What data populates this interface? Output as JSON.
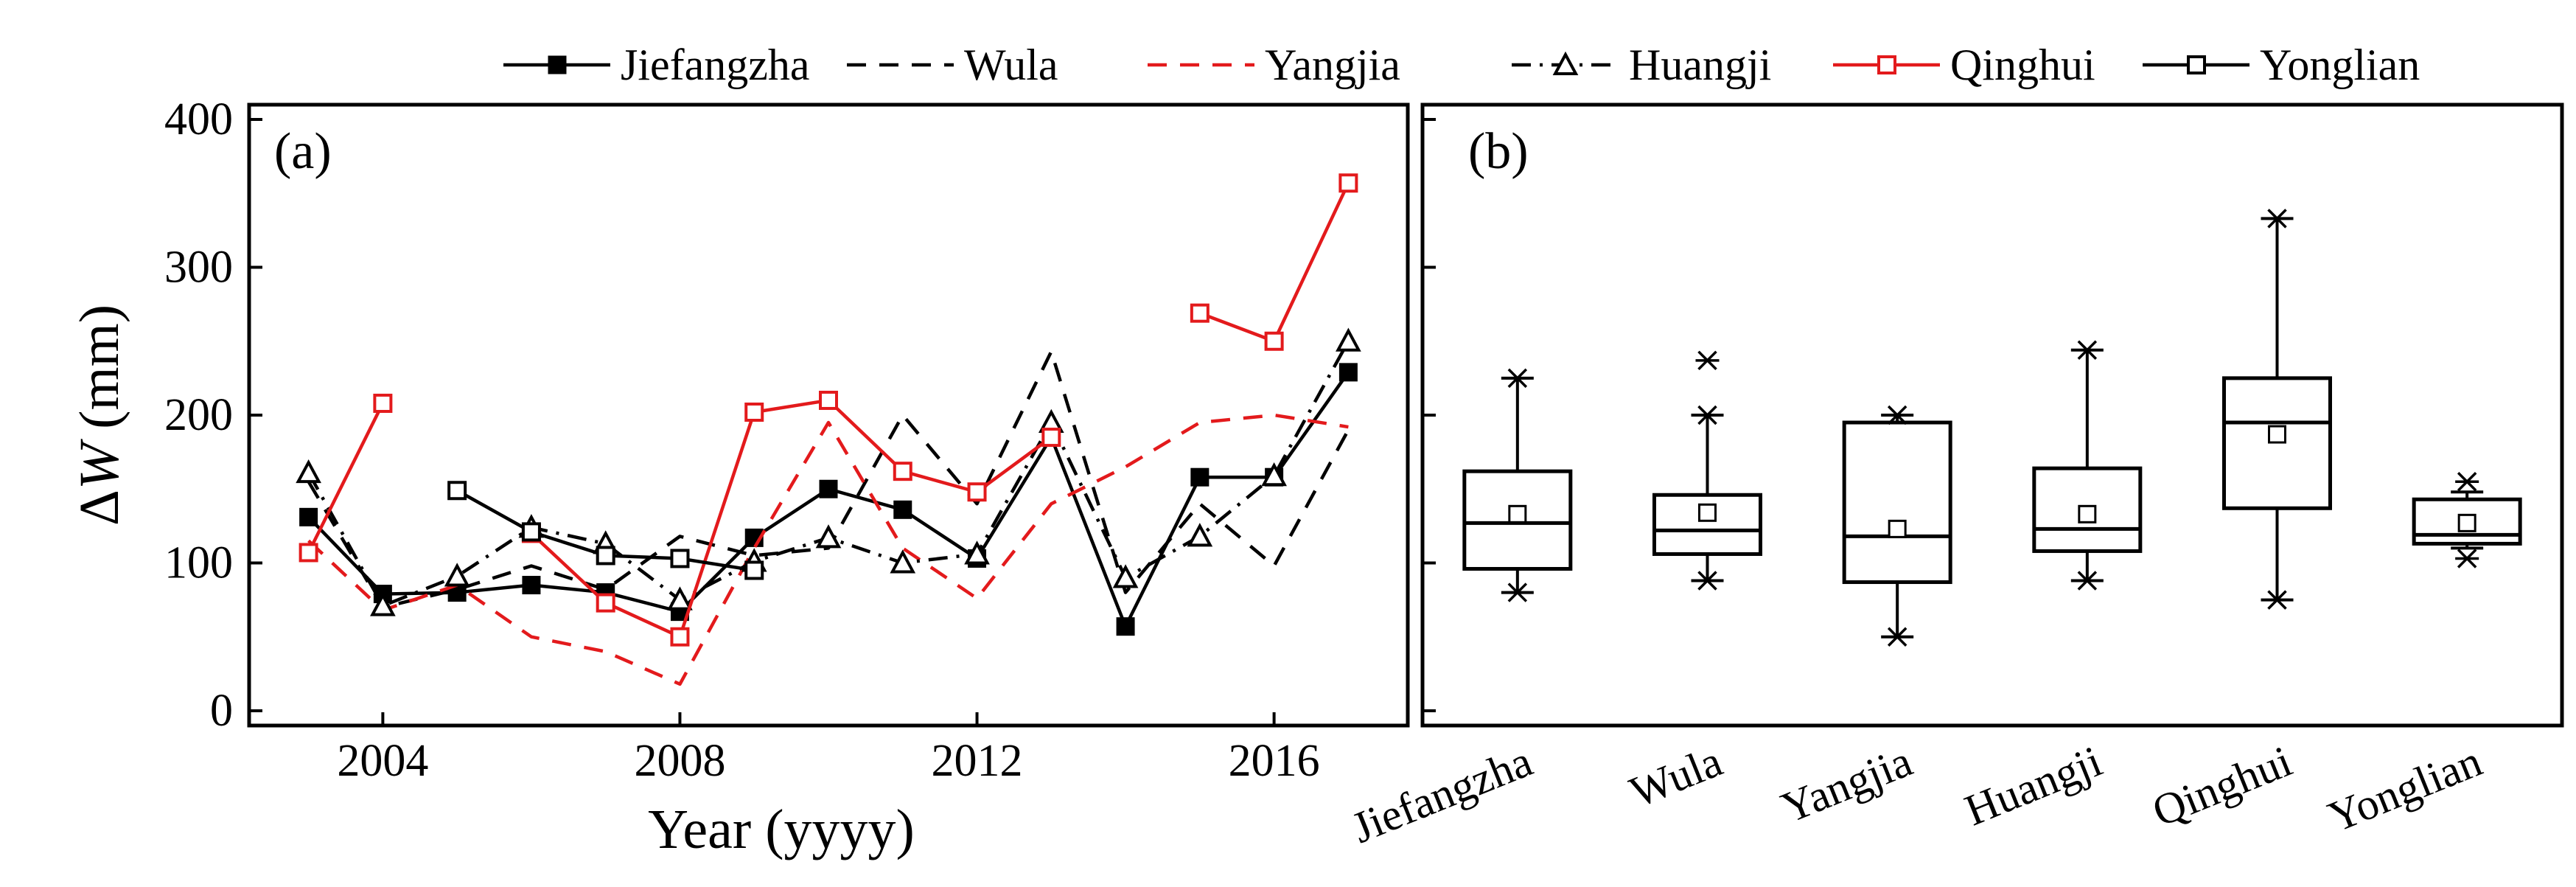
{
  "colors": {
    "black": "#000000",
    "red": "#e31a1c",
    "mean_fill": "#ffffff"
  },
  "legend": [
    {
      "name": "Jiefangzha",
      "color": "#000000",
      "dash": "solid",
      "marker": "filled-square"
    },
    {
      "name": "Wula",
      "color": "#000000",
      "dash": "dashed",
      "marker": "none"
    },
    {
      "name": "Yangjia",
      "color": "#e31a1c",
      "dash": "dashed",
      "marker": "none"
    },
    {
      "name": "Huangji",
      "color": "#000000",
      "dash": "dashdot",
      "marker": "open-triangle"
    },
    {
      "name": "Qinghui",
      "color": "#e31a1c",
      "dash": "solid",
      "marker": "open-square"
    },
    {
      "name": "Yonglian",
      "color": "#000000",
      "dash": "solid",
      "marker": "open-square"
    }
  ],
  "chart_data": [
    {
      "type": "line",
      "panel_label": "(a)",
      "xlabel": "Year (yyyy)",
      "ylabel_prefix": "Δ",
      "ylabel_var": "W",
      "ylabel_suffix": " (mm)",
      "xlim": [
        2002.2,
        2017.8
      ],
      "ylim": [
        -10,
        410
      ],
      "xticks": [
        2004,
        2008,
        2012,
        2016
      ],
      "xtick_labels": [
        "2004",
        "2008",
        "2012",
        "2016"
      ],
      "yticks": [
        0,
        100,
        200,
        300,
        400
      ],
      "ytick_labels": [
        "0",
        "100",
        "200",
        "300",
        "400"
      ],
      "series": [
        {
          "name": "Jiefangzha",
          "x": [
            2003,
            2004,
            2005,
            2006,
            2007,
            2008,
            2009,
            2010,
            2011,
            2012,
            2013,
            2014,
            2015,
            2016,
            2017
          ],
          "values": [
            131,
            79,
            80,
            85,
            80,
            67,
            117,
            150,
            136,
            103,
            185,
            57,
            158,
            158,
            229
          ]
        },
        {
          "name": "Wula",
          "x": [
            2003,
            2004,
            2005,
            2006,
            2007,
            2008,
            2009,
            2010,
            2011,
            2012,
            2013,
            2014,
            2015,
            2016,
            2017
          ],
          "values": [
            155,
            70,
            82,
            98,
            82,
            118,
            105,
            110,
            200,
            140,
            243,
            80,
            140,
            98,
            190
          ]
        },
        {
          "name": "Yangjia",
          "x": [
            2003,
            2004,
            2005,
            2006,
            2007,
            2008,
            2009,
            2010,
            2011,
            2012,
            2013,
            2014,
            2015,
            2016,
            2017
          ],
          "values": [
            115,
            68,
            85,
            50,
            40,
            18,
            110,
            195,
            110,
            76,
            140,
            165,
            195,
            200,
            192
          ]
        },
        {
          "name": "Huangji",
          "x": [
            2003,
            2004,
            2005,
            2006,
            2007,
            2008,
            2009,
            2010,
            2011,
            2012,
            2013,
            2014,
            2015,
            2016,
            2017
          ],
          "values": [
            161,
            71,
            91,
            124,
            113,
            75,
            101,
            117,
            100,
            106,
            195,
            90,
            118,
            159,
            250
          ]
        },
        {
          "name": "Qinghui",
          "x": [
            2003,
            2004,
            2005,
            2006,
            2007,
            2008,
            2009,
            2010,
            2011,
            2012,
            2013,
            2014,
            2015,
            2016,
            2017
          ],
          "values": [
            107,
            208,
            null,
            120,
            73,
            50,
            202,
            210,
            162,
            148,
            185,
            null,
            269,
            250,
            357
          ]
        },
        {
          "name": "Yonglian",
          "x": [
            2005,
            2006,
            2007,
            2008,
            2009
          ],
          "values": [
            149,
            121,
            105,
            103,
            95
          ]
        }
      ]
    },
    {
      "type": "box",
      "panel_label": "(b)",
      "ylim": [
        -10,
        410
      ],
      "yticks": [
        0,
        100,
        200,
        300,
        400
      ],
      "categories": [
        "Jiefangzha",
        "Wula",
        "Yangjia",
        "Huangji",
        "Qinghui",
        "Yonglian"
      ],
      "boxes": [
        {
          "name": "Jiefangzha",
          "min": 80,
          "q1": 96,
          "median": 127,
          "q3": 162,
          "max": 225,
          "mean": 133
        },
        {
          "name": "Wula",
          "min": 88,
          "q1": 106,
          "median": 122,
          "q3": 146,
          "max": 200,
          "mean": 134,
          "outliers": [
            237
          ]
        },
        {
          "name": "Yangjia",
          "min": 50,
          "q1": 87,
          "median": 118,
          "q3": 195,
          "max": 200,
          "mean": 123
        },
        {
          "name": "Huangji",
          "min": 88,
          "q1": 108,
          "median": 123,
          "q3": 164,
          "max": 244,
          "mean": 133
        },
        {
          "name": "Qinghui",
          "min": 75,
          "q1": 137,
          "median": 195,
          "q3": 225,
          "max": 333,
          "mean": 187
        },
        {
          "name": "Yonglian",
          "min": 110,
          "q1": 113,
          "median": 119,
          "q3": 143,
          "max": 148,
          "mean": 127,
          "min_star": 103,
          "max_star": 155
        }
      ]
    }
  ]
}
